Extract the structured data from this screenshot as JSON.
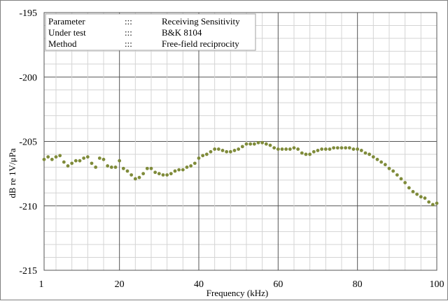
{
  "chart_data": {
    "type": "scatter",
    "xlabel": "Frequency  (kHz)",
    "ylabel": "dB re 1V/μPa",
    "xlim": [
      1,
      100
    ],
    "ylim": [
      -215,
      -195
    ],
    "x_ticks": [
      1,
      20,
      40,
      60,
      80,
      100
    ],
    "x_tick_labels": [
      "1",
      "20",
      "40",
      "60",
      "80",
      "100"
    ],
    "y_ticks": [
      -215,
      -210,
      -205,
      -200,
      -195
    ],
    "y_tick_labels": [
      "-215",
      "-210",
      "-205",
      "-200",
      "-195"
    ],
    "x_minor_step": 4,
    "y_minor_step": 1,
    "grid": true,
    "marker_color": "#7f8b3a",
    "legend_placement": "top-left",
    "legend_rows": [
      {
        "key": "Parameter",
        "sep": ":::",
        "value": "Receiving Sensitivity"
      },
      {
        "key": "Under test",
        "sep": ":::",
        "value": "B&K 8104"
      },
      {
        "key": "Method",
        "sep": ":::",
        "value": "Free-field reciprocity"
      }
    ],
    "series": [
      {
        "x": [
          1,
          2,
          3,
          4,
          5,
          6,
          7,
          8,
          9,
          10,
          11,
          12,
          13,
          14,
          15,
          16,
          17,
          18,
          19,
          20,
          21,
          22,
          23,
          24,
          25,
          26,
          27,
          28,
          29,
          30,
          31,
          32,
          33,
          34,
          35,
          36,
          37,
          38,
          39,
          40,
          41,
          42,
          43,
          44,
          45,
          46,
          47,
          48,
          49,
          50,
          51,
          52,
          53,
          54,
          55,
          56,
          57,
          58,
          59,
          60,
          61,
          62,
          63,
          64,
          65,
          66,
          67,
          68,
          69,
          70,
          71,
          72,
          73,
          74,
          75,
          76,
          77,
          78,
          79,
          80,
          81,
          82,
          83,
          84,
          85,
          86,
          87,
          88,
          89,
          90,
          91,
          92,
          93,
          94,
          95,
          96,
          97,
          98,
          99,
          100
        ],
        "values": [
          -206.4,
          -206.2,
          -206.4,
          -206.2,
          -206.1,
          -206.6,
          -206.9,
          -206.7,
          -206.5,
          -206.5,
          -206.3,
          -206.2,
          -206.7,
          -207.0,
          -206.3,
          -206.4,
          -206.9,
          -207.0,
          -207.0,
          -206.5,
          -207.1,
          -207.3,
          -207.6,
          -207.9,
          -207.8,
          -207.5,
          -207.1,
          -207.1,
          -207.4,
          -207.5,
          -207.6,
          -207.6,
          -207.5,
          -207.3,
          -207.2,
          -207.2,
          -207.0,
          -206.9,
          -206.7,
          -206.3,
          -206.1,
          -206.0,
          -205.8,
          -205.6,
          -205.6,
          -205.7,
          -205.8,
          -205.8,
          -205.7,
          -205.6,
          -205.4,
          -205.2,
          -205.2,
          -205.2,
          -205.1,
          -205.1,
          -205.2,
          -205.3,
          -205.5,
          -205.6,
          -205.6,
          -205.6,
          -205.6,
          -205.5,
          -205.6,
          -205.9,
          -206.0,
          -206.0,
          -205.8,
          -205.7,
          -205.6,
          -205.6,
          -205.6,
          -205.5,
          -205.5,
          -205.5,
          -205.5,
          -205.5,
          -205.6,
          -205.6,
          -205.7,
          -205.9,
          -206.0,
          -206.2,
          -206.4,
          -206.6,
          -206.8,
          -207.1,
          -207.3,
          -207.6,
          -207.9,
          -208.2,
          -208.6,
          -208.9,
          -209.1,
          -209.3,
          -209.4,
          -209.7,
          -209.9,
          -209.8
        ]
      }
    ]
  }
}
